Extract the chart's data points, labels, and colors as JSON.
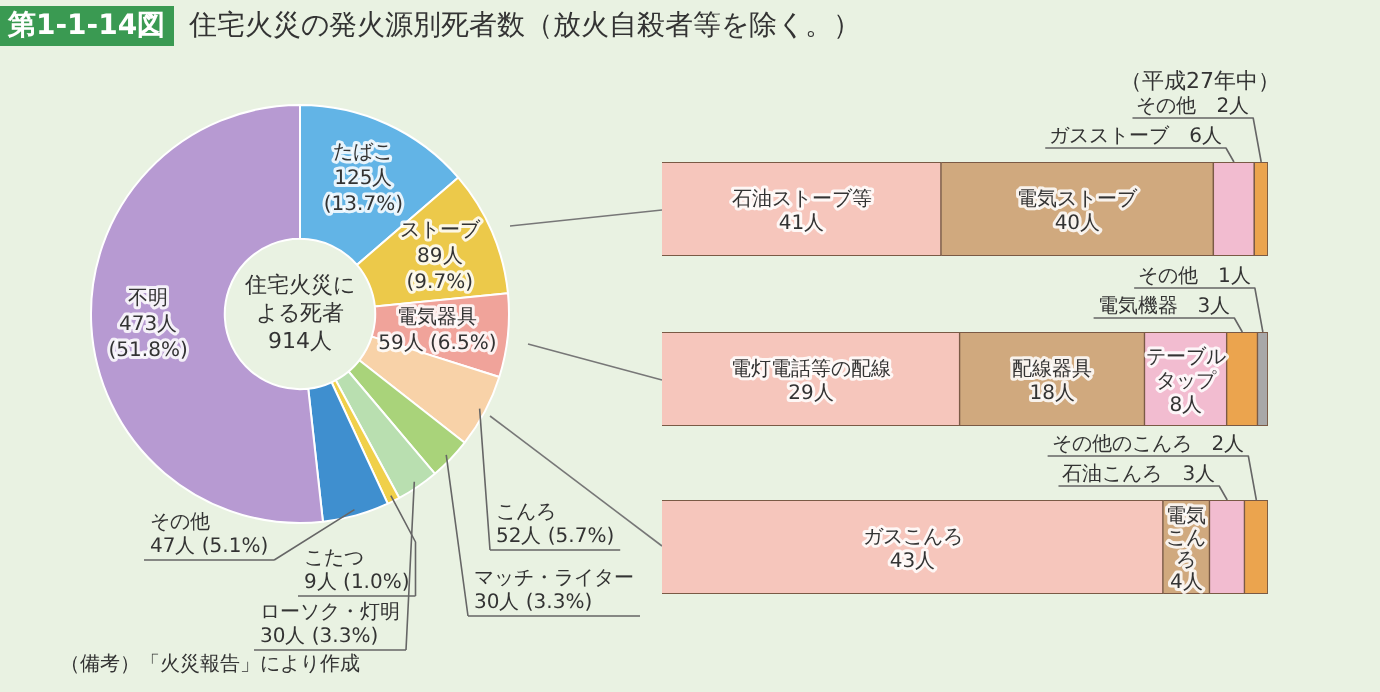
{
  "chart_data": [
    {
      "type": "donut",
      "title": "第1-1-14図 住宅火災の発火源別死者数（放火自殺者等を除く。）",
      "categories": [
        "たばこ",
        "ストーブ",
        "電気器具",
        "こんろ",
        "マッチ・ライター",
        "ローソク・灯明",
        "こたつ",
        "その他",
        "不明"
      ],
      "values": [
        125,
        89,
        59,
        52,
        30,
        30,
        9,
        47,
        473
      ],
      "value_labels": [
        "125人 (13.7%)",
        "89人 (9.7%)",
        "59人 (6.5%)",
        "52人 (5.7%)",
        "30人 (3.3%)",
        "30人 (3.3%)",
        "9人 (1.0%)",
        "47人 (5.1%)",
        "473人 (51.8%)"
      ],
      "colors": [
        "#62b4e6",
        "#ecc94a",
        "#f0a39a",
        "#f8d2a8",
        "#a9d37a",
        "#b9dfb0",
        "#f0d04a",
        "#3f8fcf",
        "#b79ad2"
      ],
      "annotations": [
        "住宅火災による死者 914人",
        "（備考）「火災報告」により作成"
      ]
    },
    {
      "type": "bar",
      "orientation": "horizontal",
      "stacked": true,
      "categories": [
        null
      ],
      "annotations": [
        "（平成27年中）"
      ],
      "series": [
        {
          "name": "石油ストーブ等",
          "color": "#f6c6bc",
          "values": [
            41
          ],
          "value_labels": [
            "41人"
          ]
        },
        {
          "name": "電気ストーブ",
          "color": "#d0a97e",
          "values": [
            40
          ],
          "value_labels": [
            "40人"
          ]
        },
        {
          "name": "ガスストーブ",
          "color": "#f2bcd0",
          "values": [
            6
          ],
          "value_labels": [
            "6人"
          ]
        },
        {
          "name": "その他",
          "color": "#eba44e",
          "values": [
            2
          ],
          "value_labels": [
            "2人"
          ]
        }
      ]
    },
    {
      "type": "bar",
      "orientation": "horizontal",
      "stacked": true,
      "categories": [
        null
      ],
      "series": [
        {
          "name": "電灯電話等の配線",
          "color": "#f6c6bc",
          "values": [
            29
          ],
          "value_labels": [
            "29人"
          ]
        },
        {
          "name": "配線器具",
          "color": "#d0a97e",
          "values": [
            18
          ],
          "value_labels": [
            "18人"
          ]
        },
        {
          "name": "テーブルタップ",
          "color": "#f2bcd0",
          "values": [
            8
          ],
          "value_labels": [
            "8人"
          ]
        },
        {
          "name": "電気機器",
          "color": "#eba44e",
          "values": [
            3
          ],
          "value_labels": [
            "3人"
          ]
        },
        {
          "name": "その他",
          "color": "#a8a8a8",
          "values": [
            1
          ],
          "value_labels": [
            "1人"
          ]
        }
      ]
    },
    {
      "type": "bar",
      "orientation": "horizontal",
      "stacked": true,
      "categories": [
        null
      ],
      "series": [
        {
          "name": "ガスこんろ",
          "color": "#f6c6bc",
          "values": [
            43
          ],
          "value_labels": [
            "43人"
          ]
        },
        {
          "name": "電気こんろ",
          "color": "#d0a97e",
          "values": [
            4
          ],
          "value_labels": [
            "4人"
          ]
        },
        {
          "name": "石油こんろ",
          "color": "#f2bcd0",
          "values": [
            3
          ],
          "value_labels": [
            "3人"
          ]
        },
        {
          "name": "その他のこんろ",
          "color": "#eba44e",
          "values": [
            2
          ],
          "value_labels": [
            "2人"
          ]
        }
      ]
    }
  ]
}
